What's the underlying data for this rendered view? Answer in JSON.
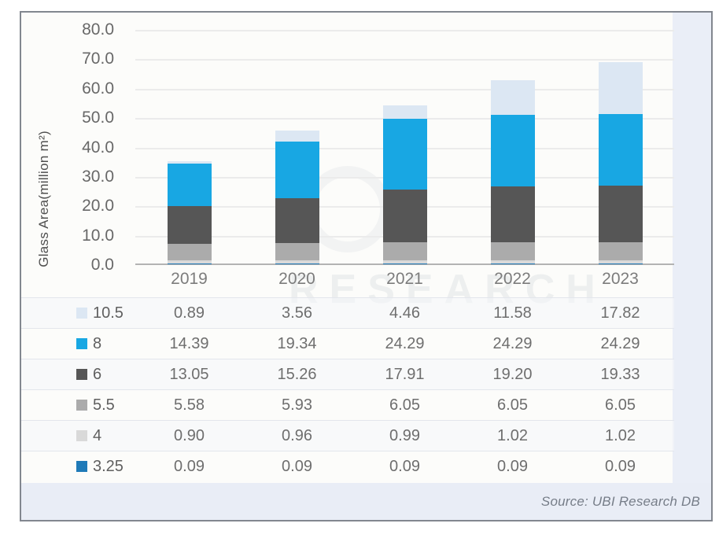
{
  "figure": {
    "source_note": "Source: UBI Research DB",
    "watermark": "RESEARCH"
  },
  "chart_data": {
    "type": "bar",
    "stacked": true,
    "title": "",
    "xlabel": "",
    "ylabel": "Glass Area(million m²)",
    "ylim": [
      0,
      80
    ],
    "ytick_step": 10,
    "ytick_labels": [
      "80.0",
      "70.0",
      "60.0",
      "50.0",
      "40.0",
      "30.0",
      "20.0",
      "10.0",
      "0.0"
    ],
    "grid": true,
    "legend_position": "table-left",
    "categories": [
      "2019",
      "2020",
      "2021",
      "2022",
      "2023"
    ],
    "series": [
      {
        "name": "10.5",
        "color": "#dce7f3",
        "values": [
          0.89,
          3.56,
          4.46,
          11.58,
          17.82
        ]
      },
      {
        "name": "8",
        "color": "#18a7e3",
        "values": [
          14.39,
          19.34,
          24.29,
          24.29,
          24.29
        ]
      },
      {
        "name": "6",
        "color": "#565656",
        "values": [
          13.05,
          15.26,
          17.91,
          19.2,
          19.33
        ]
      },
      {
        "name": "5.5",
        "color": "#ababab",
        "values": [
          5.58,
          5.93,
          6.05,
          6.05,
          6.05
        ]
      },
      {
        "name": "4",
        "color": "#d9d9d9",
        "values": [
          0.9,
          0.96,
          0.99,
          1.02,
          1.02
        ]
      },
      {
        "name": "3.25",
        "color": "#1f7ab8",
        "values": [
          0.09,
          0.09,
          0.09,
          0.09,
          0.09
        ]
      }
    ],
    "value_decimals": 2
  }
}
